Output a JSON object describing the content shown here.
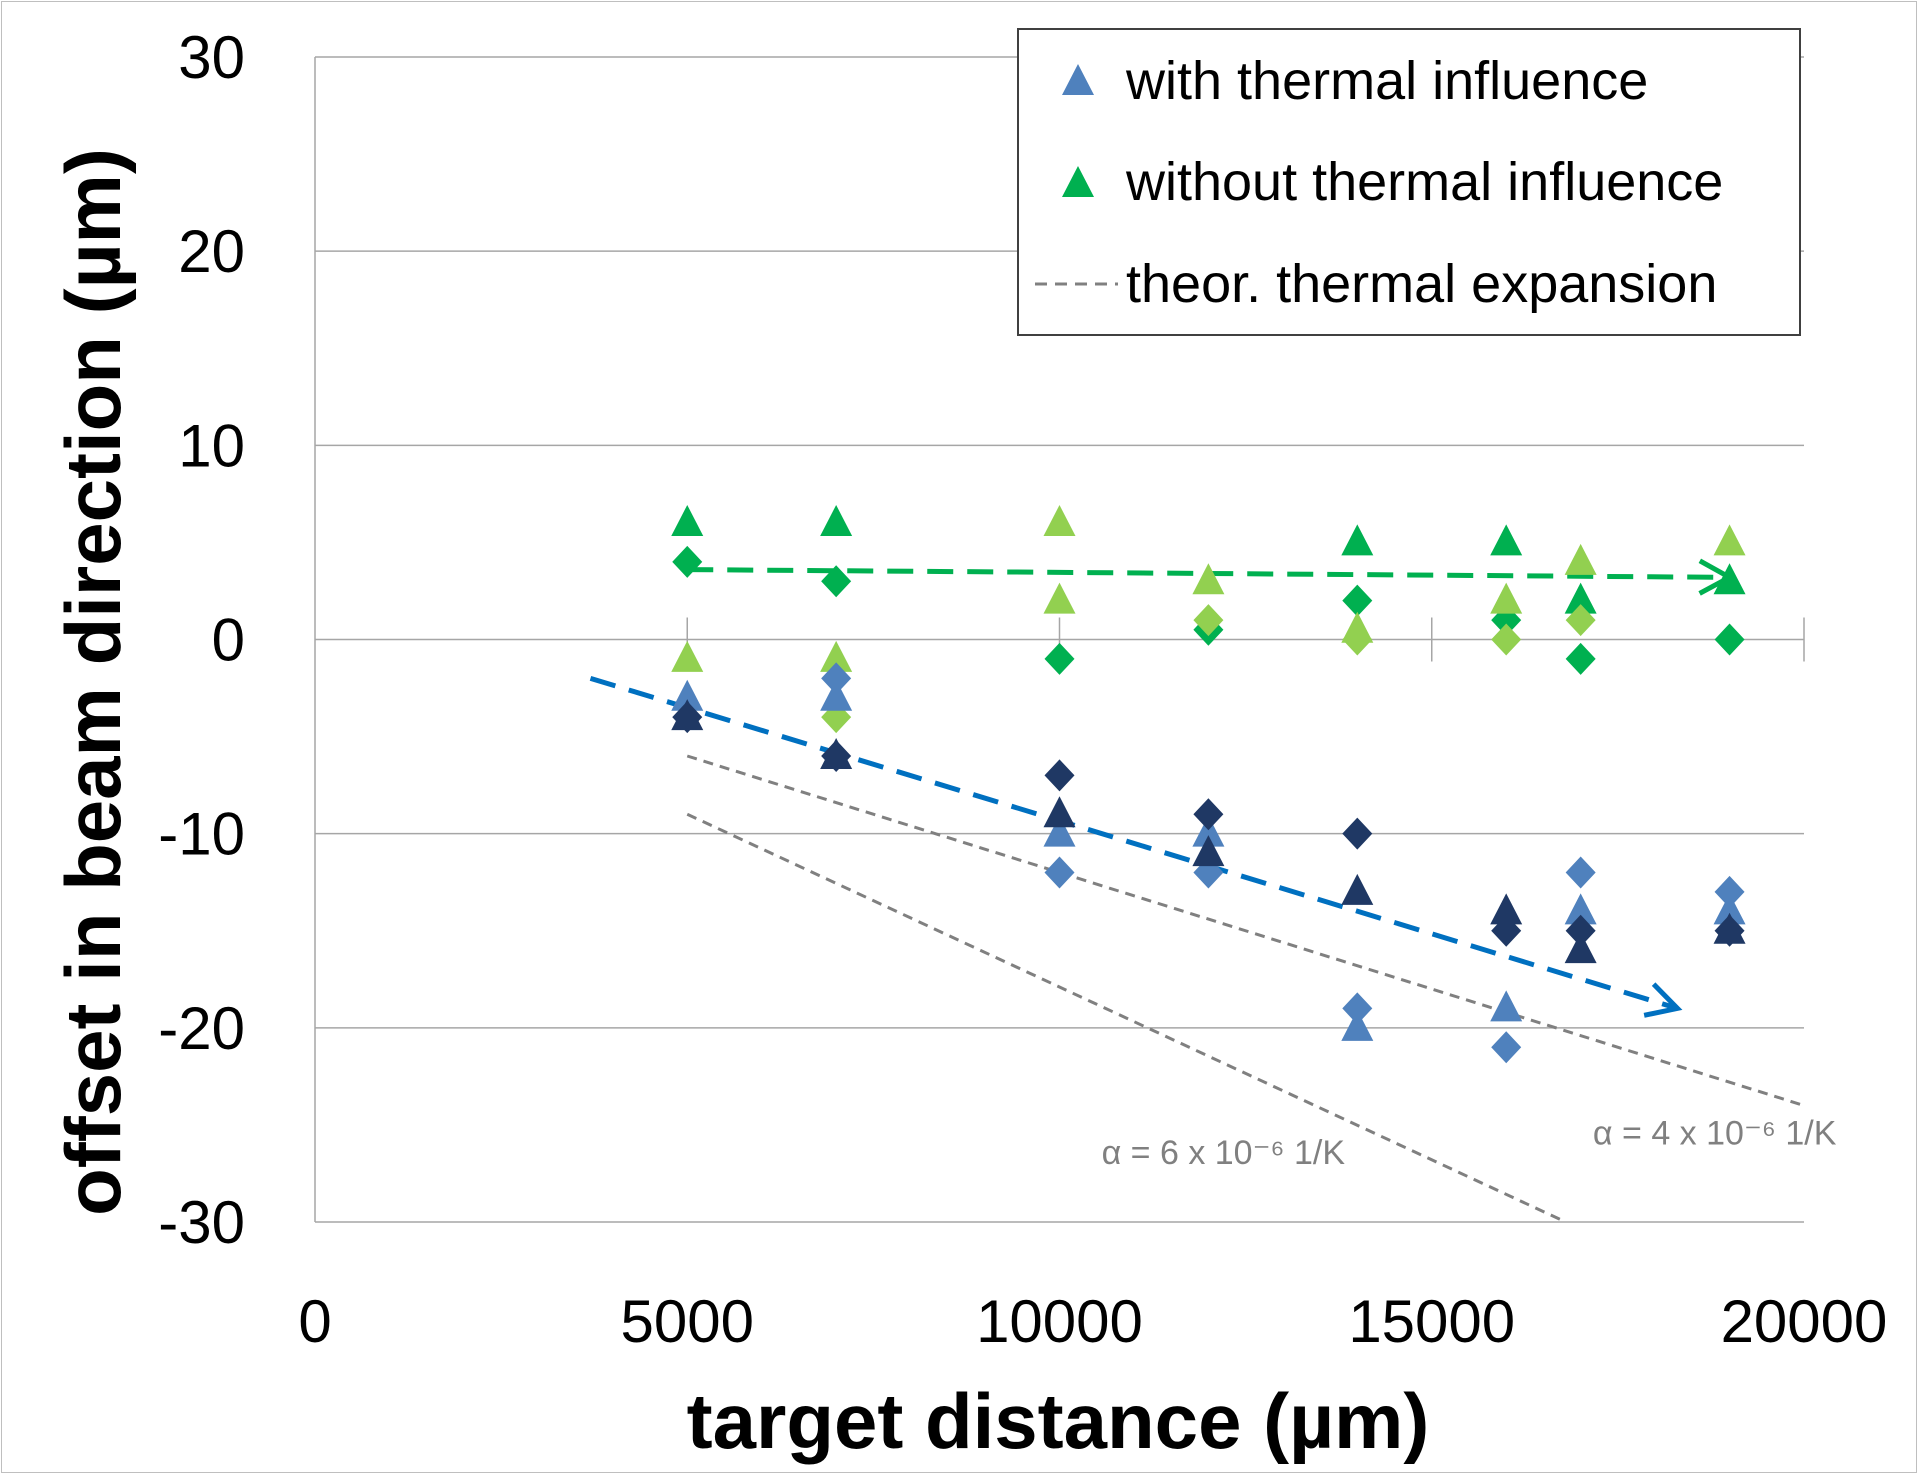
{
  "chart_data": {
    "type": "scatter",
    "xlabel": "target distance (µm)",
    "ylabel": "offset in beam direction (µm)",
    "xlim": [
      0,
      20000
    ],
    "ylim": [
      -30,
      30
    ],
    "x_ticks": [
      0,
      5000,
      10000,
      15000,
      20000
    ],
    "y_ticks": [
      30,
      20,
      10,
      0,
      -10,
      -20,
      -30
    ],
    "grid": "horizontal",
    "legend_position": "top-right",
    "legend": [
      {
        "label": "with thermal influence",
        "marker": "triangle",
        "color": "#4f81bd"
      },
      {
        "label": "without thermal influence",
        "marker": "triangle",
        "color": "#00b050"
      },
      {
        "label": "theor. thermal expansion",
        "marker": "dashed-line",
        "color": "#808080"
      }
    ],
    "series": [
      {
        "marker": "triangle",
        "color": "#00b050",
        "points": [
          [
            5000,
            6
          ],
          [
            7000,
            6
          ],
          [
            14000,
            5
          ],
          [
            16000,
            5
          ],
          [
            17000,
            2
          ],
          [
            19000,
            3
          ]
        ]
      },
      {
        "marker": "diamond",
        "color": "#00b050",
        "points": [
          [
            5000,
            4
          ],
          [
            7000,
            3
          ],
          [
            10000,
            -1
          ],
          [
            12000,
            0.5
          ],
          [
            14000,
            2
          ],
          [
            16000,
            1
          ],
          [
            17000,
            -1
          ],
          [
            19000,
            0
          ]
        ]
      },
      {
        "marker": "triangle",
        "color": "#92d050",
        "points": [
          [
            5000,
            -1
          ],
          [
            7000,
            -1
          ],
          [
            10000,
            6
          ],
          [
            10000,
            2
          ],
          [
            12000,
            3
          ],
          [
            14000,
            0.5
          ],
          [
            16000,
            2
          ],
          [
            17000,
            4
          ],
          [
            19000,
            5
          ]
        ]
      },
      {
        "marker": "diamond",
        "color": "#92d050",
        "points": [
          [
            7000,
            -4
          ],
          [
            12000,
            1
          ],
          [
            14000,
            0
          ],
          [
            16000,
            0
          ],
          [
            17000,
            1
          ]
        ]
      },
      {
        "marker": "triangle",
        "color": "#4f81bd",
        "points": [
          [
            5000,
            -3
          ],
          [
            7000,
            -3
          ],
          [
            10000,
            -10
          ],
          [
            12000,
            -10
          ],
          [
            14000,
            -20
          ],
          [
            16000,
            -19
          ],
          [
            17000,
            -14
          ],
          [
            19000,
            -14
          ]
        ]
      },
      {
        "marker": "diamond",
        "color": "#4f81bd",
        "points": [
          [
            7000,
            -2
          ],
          [
            10000,
            -12
          ],
          [
            12000,
            -12
          ],
          [
            14000,
            -19
          ],
          [
            16000,
            -21
          ],
          [
            17000,
            -12
          ],
          [
            19000,
            -13
          ]
        ]
      },
      {
        "marker": "triangle",
        "color": "#1f3864",
        "points": [
          [
            5000,
            -4
          ],
          [
            7000,
            -6
          ],
          [
            10000,
            -9
          ],
          [
            12000,
            -11
          ],
          [
            14000,
            -13
          ],
          [
            16000,
            -14
          ],
          [
            17000,
            -16
          ],
          [
            19000,
            -15
          ]
        ]
      },
      {
        "marker": "diamond",
        "color": "#1f3864",
        "points": [
          [
            5000,
            -4
          ],
          [
            7000,
            -6
          ],
          [
            10000,
            -7
          ],
          [
            12000,
            -9
          ],
          [
            14000,
            -10
          ],
          [
            16000,
            -15
          ],
          [
            17000,
            -15
          ],
          [
            19000,
            -15
          ]
        ]
      }
    ],
    "trend_arrows": [
      {
        "color": "#00b050",
        "from": [
          5000,
          3.6
        ],
        "to": [
          19000,
          3.2
        ]
      },
      {
        "color": "#0070c0",
        "from": [
          3700,
          -2
        ],
        "to": [
          18300,
          -19
        ]
      }
    ],
    "theory_lines": [
      {
        "color": "#808080",
        "from": [
          5000,
          -6
        ],
        "to": [
          20000,
          -24
        ]
      },
      {
        "color": "#808080",
        "from": [
          5000,
          -9
        ],
        "to": [
          16800,
          -30
        ]
      }
    ],
    "annotations": [
      {
        "text": "α = 6 x 10⁻⁶ 1/K",
        "at": [
          12200,
          -27
        ]
      },
      {
        "text": "α = 4 x 10⁻⁶ 1/K",
        "at": [
          18800,
          -26
        ]
      }
    ]
  }
}
